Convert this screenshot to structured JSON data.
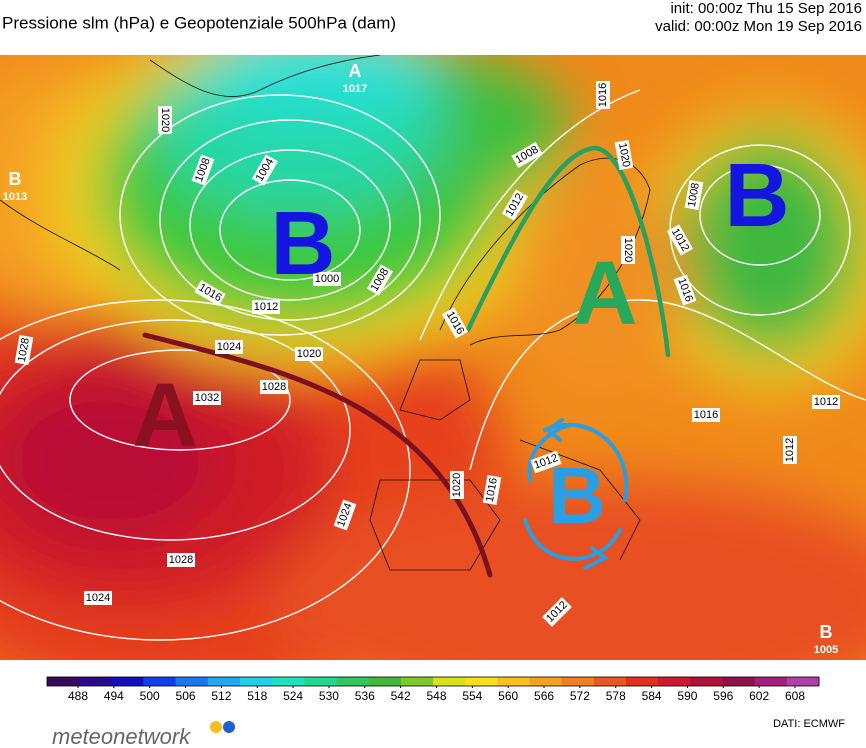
{
  "header": {
    "title": "Pressione slm (hPa) e Geopotenziale 500hPa (dam)",
    "init": "init: 00:00z Thu 15 Sep 2016",
    "valid": "valid: 00:00z Mon 19 Sep 2016"
  },
  "map": {
    "centers": [
      {
        "letter": "B",
        "color": "#1515e0"
      },
      {
        "letter": "A",
        "color": "#8b1020"
      },
      {
        "letter": "A",
        "color": "#27a85a"
      },
      {
        "letter": "B",
        "color": "#1515e0"
      },
      {
        "letter": "B",
        "color": "#2a9ee0"
      }
    ],
    "pressure_centers": [
      {
        "letter": "A",
        "value": "1017"
      },
      {
        "letter": "B",
        "value": "1013"
      },
      {
        "letter": "B",
        "value": "1005"
      }
    ],
    "isobar_labels": [
      "1020",
      "1008",
      "1004",
      "1000",
      "1008",
      "1012",
      "1016",
      "1024",
      "1020",
      "1028",
      "1032",
      "1028",
      "1024",
      "1028",
      "1024",
      "1020",
      "1016",
      "1012",
      "1012",
      "1016",
      "1008",
      "1012",
      "1016",
      "1020",
      "1020",
      "1008",
      "1012",
      "1016",
      "1016",
      "1012",
      "1012"
    ]
  },
  "colorbar": {
    "ticks": [
      488,
      494,
      500,
      506,
      512,
      518,
      524,
      530,
      536,
      542,
      548,
      554,
      560,
      566,
      572,
      578,
      584,
      590,
      596,
      602,
      608
    ],
    "colors": [
      "#3a0a5a",
      "#2a0a8a",
      "#1010c0",
      "#1040e8",
      "#1878f0",
      "#20a8f0",
      "#20d0e8",
      "#20e0c0",
      "#20d890",
      "#30c860",
      "#40b838",
      "#80c828",
      "#d8e020",
      "#f8e020",
      "#f8c020",
      "#f8a020",
      "#f08020",
      "#e85820",
      "#e03020",
      "#d01830",
      "#b0103a",
      "#901048",
      "#a02080",
      "#b040a8"
    ]
  },
  "footer": {
    "logo": "meteonetwork",
    "source": "DATI: ECMWF"
  }
}
